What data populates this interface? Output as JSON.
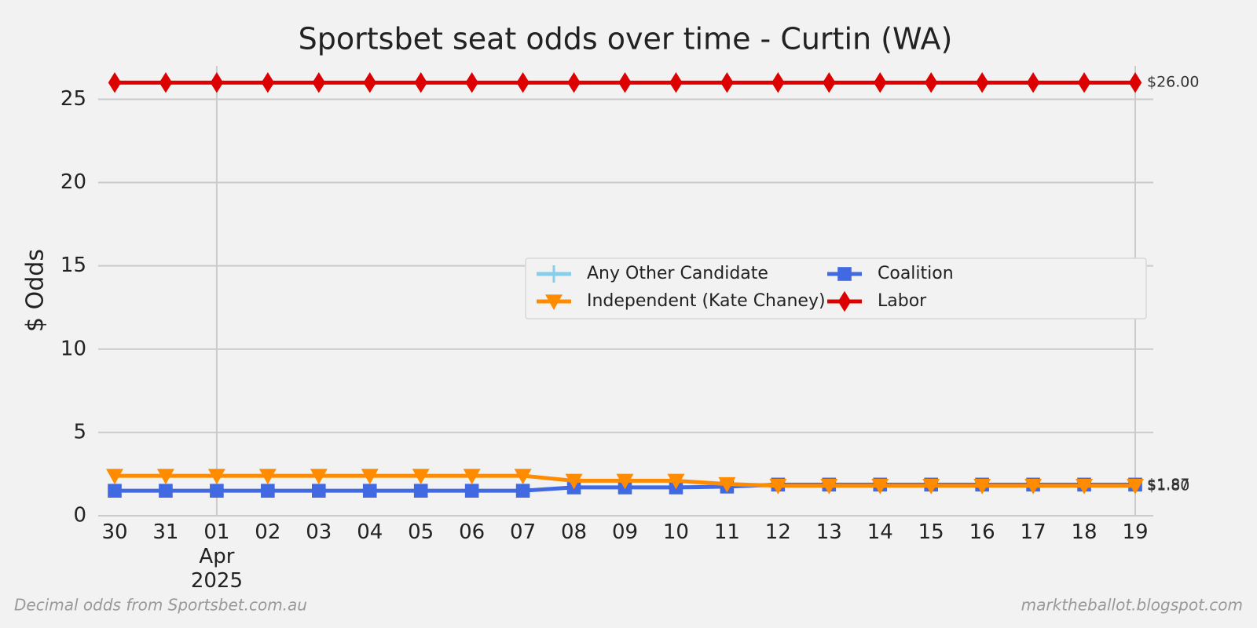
{
  "chart_data": {
    "type": "line",
    "title": "Sportsbet seat odds over time - Curtin (WA)",
    "y_label": "$ Odds",
    "categories": [
      "30",
      "31",
      "01 Apr 2025",
      "02",
      "03",
      "04",
      "05",
      "06",
      "07",
      "08",
      "09",
      "10",
      "11",
      "12",
      "13",
      "14",
      "15",
      "16",
      "17",
      "18",
      "19"
    ],
    "series": [
      {
        "name": "Any Other Candidate",
        "color": "#87ceeb",
        "marker": "plus",
        "values": [
          null,
          null,
          null,
          null,
          null,
          null,
          null,
          null,
          null,
          null,
          null,
          null,
          null,
          null,
          null,
          null,
          null,
          null,
          null,
          null,
          null
        ]
      },
      {
        "name": "Coalition",
        "color": "#4169e1",
        "marker": "square",
        "values": [
          1.5,
          1.5,
          1.5,
          1.5,
          1.5,
          1.5,
          1.5,
          1.5,
          1.5,
          1.7,
          1.7,
          1.7,
          1.75,
          1.87,
          1.87,
          1.87,
          1.87,
          1.87,
          1.87,
          1.87,
          1.87
        ],
        "value_labels": [
          null,
          null,
          null,
          null,
          null,
          null,
          null,
          null,
          null,
          null,
          null,
          null,
          null,
          null,
          null,
          null,
          null,
          null,
          null,
          null,
          "$1.87"
        ]
      },
      {
        "name": "Independent (Kate Chaney)",
        "color": "#ff8c00",
        "marker": "triangle-down",
        "values": [
          2.4,
          2.4,
          2.4,
          2.4,
          2.4,
          2.4,
          2.4,
          2.4,
          2.4,
          2.1,
          2.1,
          2.1,
          1.9,
          1.8,
          1.8,
          1.8,
          1.8,
          1.8,
          1.8,
          1.8,
          1.8
        ],
        "value_labels": [
          null,
          null,
          null,
          null,
          null,
          null,
          null,
          null,
          null,
          null,
          null,
          null,
          null,
          null,
          null,
          null,
          null,
          null,
          null,
          null,
          "$1.80"
        ]
      },
      {
        "name": "Labor",
        "color": "#dd0000",
        "marker": "diamond",
        "values": [
          26,
          26,
          26,
          26,
          26,
          26,
          26,
          26,
          26,
          26,
          26,
          26,
          26,
          26,
          26,
          26,
          26,
          26,
          26,
          26,
          26
        ],
        "value_labels": [
          null,
          null,
          null,
          null,
          null,
          null,
          null,
          null,
          null,
          null,
          null,
          null,
          null,
          null,
          null,
          null,
          null,
          null,
          null,
          null,
          "$26.00"
        ]
      }
    ],
    "ylim": [
      0,
      27
    ],
    "yticks": [
      0,
      5,
      10,
      15,
      20,
      25
    ],
    "grid": true,
    "legend": "center right",
    "footnote_left": "Decimal odds from Sportsbet.com.au",
    "footnote_right": "marktheballot.blogspot.com"
  }
}
